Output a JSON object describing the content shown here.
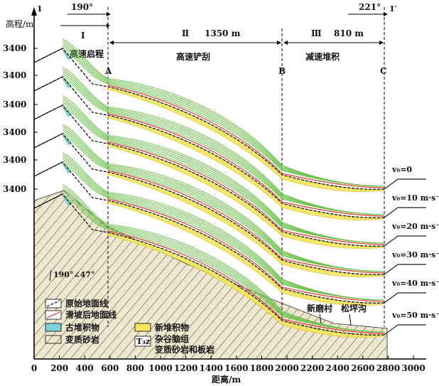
{
  "axes": {
    "y_label": "高程/m",
    "x_label": "距离/m",
    "y_tick_labels": [
      "3400",
      "3400",
      "3400",
      "3400",
      "3400",
      "3400"
    ],
    "x_ticks": [
      "0",
      "200",
      "400",
      "600",
      "800",
      "1000",
      "1200",
      "1400",
      "1600",
      "1800",
      "2000",
      "2200",
      "2400",
      "2600",
      "2800",
      "3000"
    ]
  },
  "section": {
    "start": "1",
    "end": "1′",
    "angle_start": "190°",
    "angle_end": "221°"
  },
  "zones": [
    {
      "id": "Ⅰ",
      "label": "高速启程"
    },
    {
      "id": "Ⅱ",
      "length": "1350 m",
      "label": "高速铲刮"
    },
    {
      "id": "Ⅲ",
      "length": "810 m",
      "label": "减速堆积"
    }
  ],
  "points": [
    "A",
    "B",
    "C"
  ],
  "speed_labels": [
    "v₀=0",
    "v₀=10 m·s⁻¹",
    "v₀=20 m·s⁻¹",
    "v₀=30 m·s⁻¹",
    "v₀=40 m·s⁻¹",
    "v₀=50 m·s⁻¹"
  ],
  "dip": "190°∠47°",
  "places": [
    "新磨村",
    "松坪沟"
  ],
  "legend": {
    "original_surface": "原始地面线",
    "post_slide_surface": "滑坡后地面线",
    "ancient_deposit": "古堆积物",
    "metasandstone": "变质砂岩",
    "new_deposit": "新堆积物",
    "formation_line1": "杂谷脑组",
    "formation_line2": "变质砂岩和板岩",
    "formation_symbol": "T₃z"
  },
  "colors": {
    "green": "#6cc04a",
    "red": "#e03a2a",
    "yellow": "#f3e45a",
    "cyan": "#7fd3d8"
  }
}
